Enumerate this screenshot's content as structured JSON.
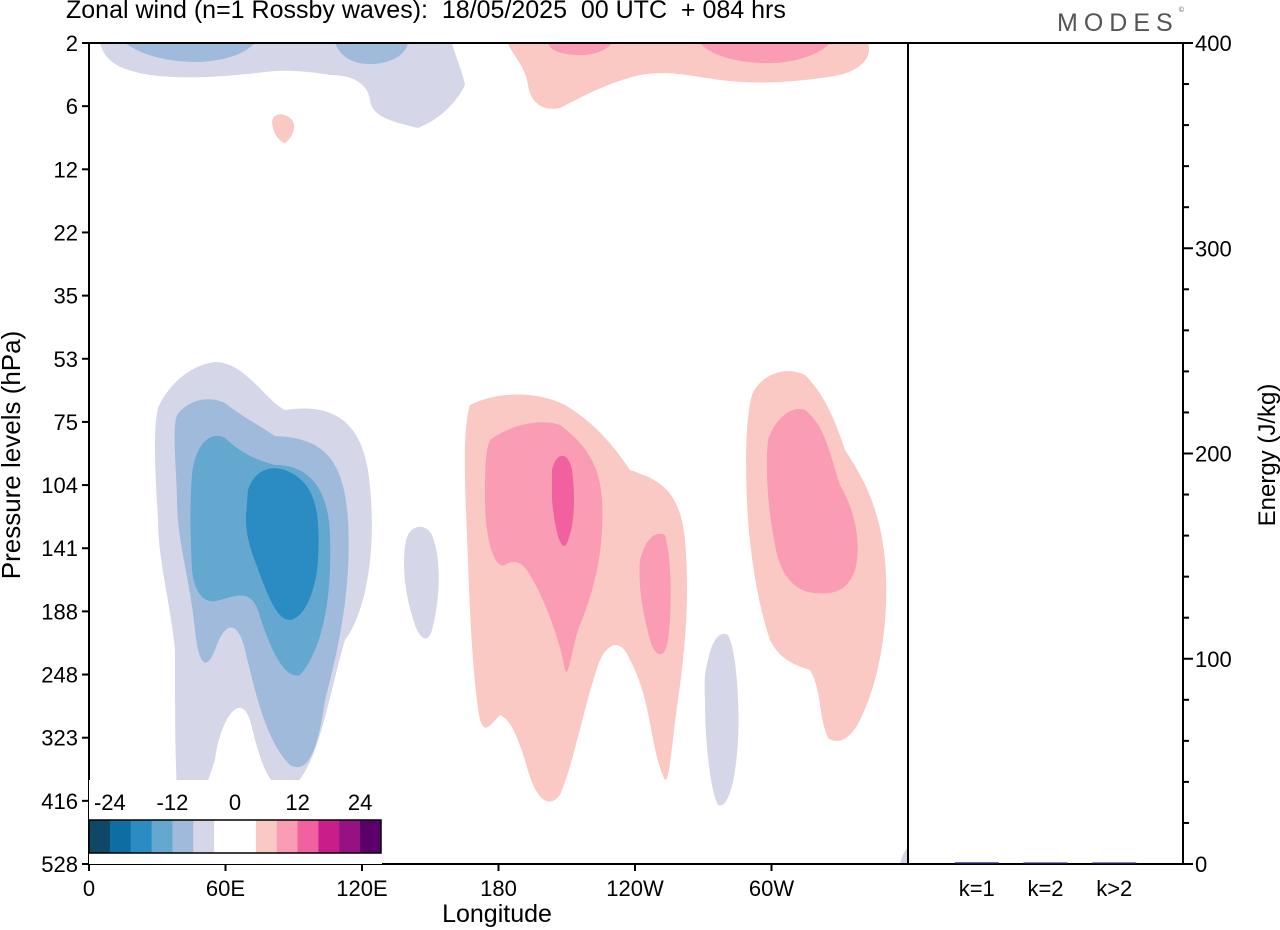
{
  "title": "Zonal wind (n=1 Rossby waves):  18/05/2025  00 UTC  + 084 hrs",
  "brand": "MODES",
  "brand_mark": "©",
  "chart_data": [
    {
      "type": "heatmap",
      "title": "Zonal wind (n=1 Rossby waves):  18/05/2025  00 UTC  + 084 hrs",
      "xlabel": "Longitude",
      "ylabel": "Pressure levels (hPa)",
      "x_ticks": [
        "0",
        "60E",
        "120E",
        "180",
        "120W",
        "60W"
      ],
      "x_tick_degrees": [
        0,
        60,
        120,
        180,
        240,
        300
      ],
      "xlim": [
        0,
        360
      ],
      "y_ticks": [
        "2",
        "6",
        "12",
        "22",
        "35",
        "53",
        "75",
        "104",
        "141",
        "188",
        "248",
        "323",
        "416",
        "528"
      ],
      "y_scale": "pressure levels, top = 2 hPa, bottom = 528 hPa",
      "colorbar": {
        "labels": [
          "-24",
          "-12",
          "0",
          "12",
          "24"
        ],
        "colors": [
          "#0f4766",
          "#0e6da3",
          "#2b8bc3",
          "#64a7cf",
          "#9fbadb",
          "#d5d6e8",
          "#ffffff",
          "#ffffff",
          "#fbc9c4",
          "#f99cb4",
          "#f2619f",
          "#c91e8a",
          "#961283",
          "#5b006b"
        ],
        "placement": "bottom-left"
      },
      "features": [
        {
          "sign": "negative",
          "lon": 80,
          "level": "141",
          "peak_value": -20
        },
        {
          "sign": "negative",
          "lon": 25,
          "level": "2",
          "peak_value": -12
        },
        {
          "sign": "negative",
          "lon": 148,
          "level": "141",
          "peak_value": -8
        },
        {
          "sign": "negative",
          "lon": 278,
          "level": "323",
          "peak_value": -8
        },
        {
          "sign": "positive",
          "lon": 208,
          "level": "104",
          "peak_value": 16
        },
        {
          "sign": "positive",
          "lon": 246,
          "level": "141",
          "peak_value": 12
        },
        {
          "sign": "positive",
          "lon": 316,
          "level": "104",
          "peak_value": 12
        },
        {
          "sign": "positive",
          "lon": 300,
          "level": "2",
          "peak_value": 12
        },
        {
          "sign": "positive",
          "lon": 200,
          "level": "2",
          "peak_value": 12
        },
        {
          "sign": "positive",
          "lon": 86,
          "level": "6",
          "peak_value": 8
        }
      ]
    },
    {
      "type": "bar",
      "ylabel": "Energy (J/kg)",
      "categories": [
        "k=1",
        "k=2",
        "k>2"
      ],
      "values": [
        0.8,
        0.3,
        0.6
      ],
      "ylim": [
        0,
        400
      ],
      "y_ticks": [
        "0",
        "100",
        "200",
        "300",
        "400"
      ],
      "color": "#1a1a5a"
    }
  ]
}
